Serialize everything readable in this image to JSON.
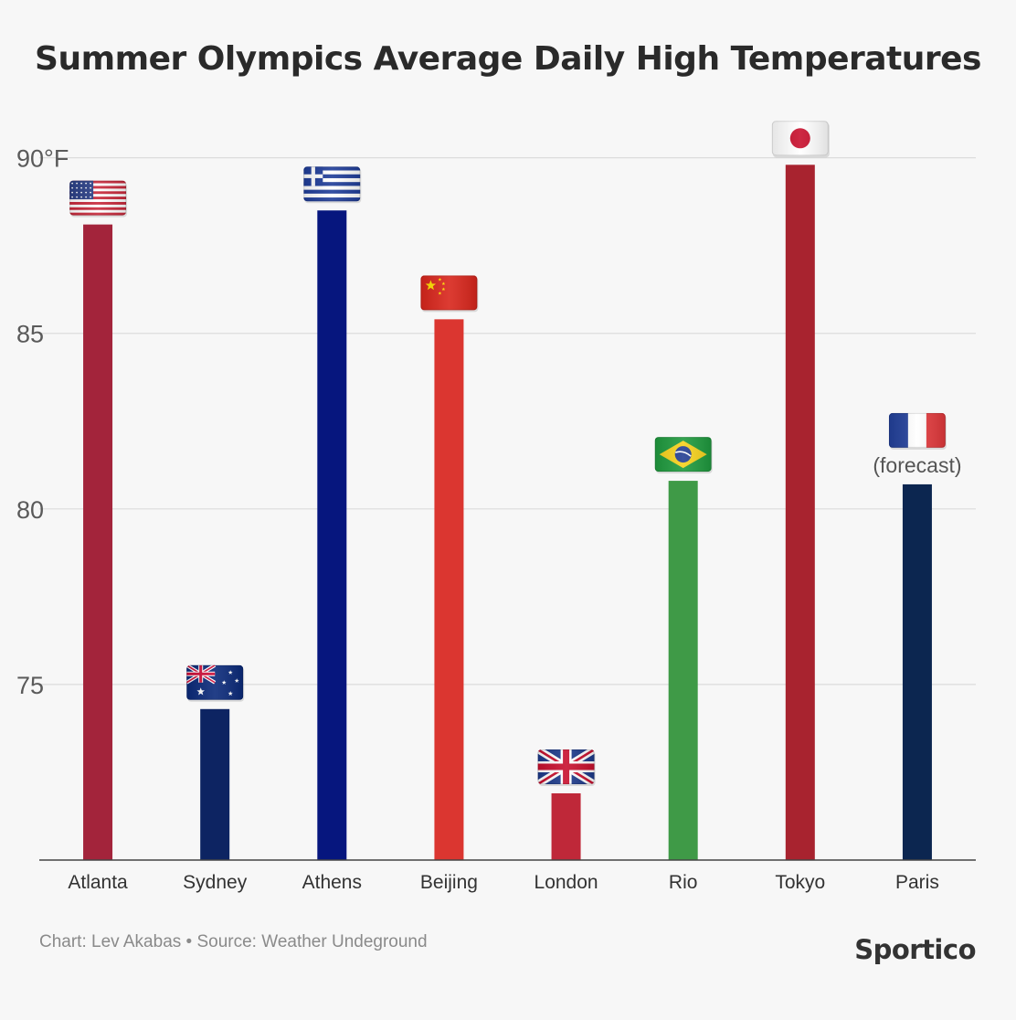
{
  "title": "Summer Olympics Average Daily High Temperatures",
  "footer": {
    "credit": "Chart: Lev Akabas • Source: Weather Undeground",
    "brand": "Sportico"
  },
  "chart_data": {
    "type": "bar",
    "title": "Summer Olympics Average Daily High Temperatures",
    "xlabel": "",
    "ylabel": "",
    "ylim": [
      70,
      91.5
    ],
    "yticks": [
      {
        "value": 90,
        "label": "90°F"
      },
      {
        "value": 85,
        "label": "85"
      },
      {
        "value": 80,
        "label": "80"
      },
      {
        "value": 75,
        "label": "75"
      }
    ],
    "grid": true,
    "categories": [
      "Atlanta",
      "Sydney",
      "Athens",
      "Beijing",
      "London",
      "Rio",
      "Tokyo",
      "Paris"
    ],
    "values": [
      88.1,
      74.3,
      88.5,
      85.4,
      71.9,
      80.8,
      89.8,
      80.7
    ],
    "colors": [
      "#a3243b",
      "#0d2462",
      "#06167e",
      "#db3630",
      "#bf2839",
      "#3f9a47",
      "#a8232f",
      "#0c2650"
    ],
    "flags": [
      "us-flag-icon",
      "australia-flag-icon",
      "greece-flag-icon",
      "china-flag-icon",
      "uk-flag-icon",
      "brazil-flag-icon",
      "japan-flag-icon",
      "france-flag-icon"
    ],
    "annotations": [
      {
        "category": "Paris",
        "text": "(forecast)"
      }
    ]
  }
}
